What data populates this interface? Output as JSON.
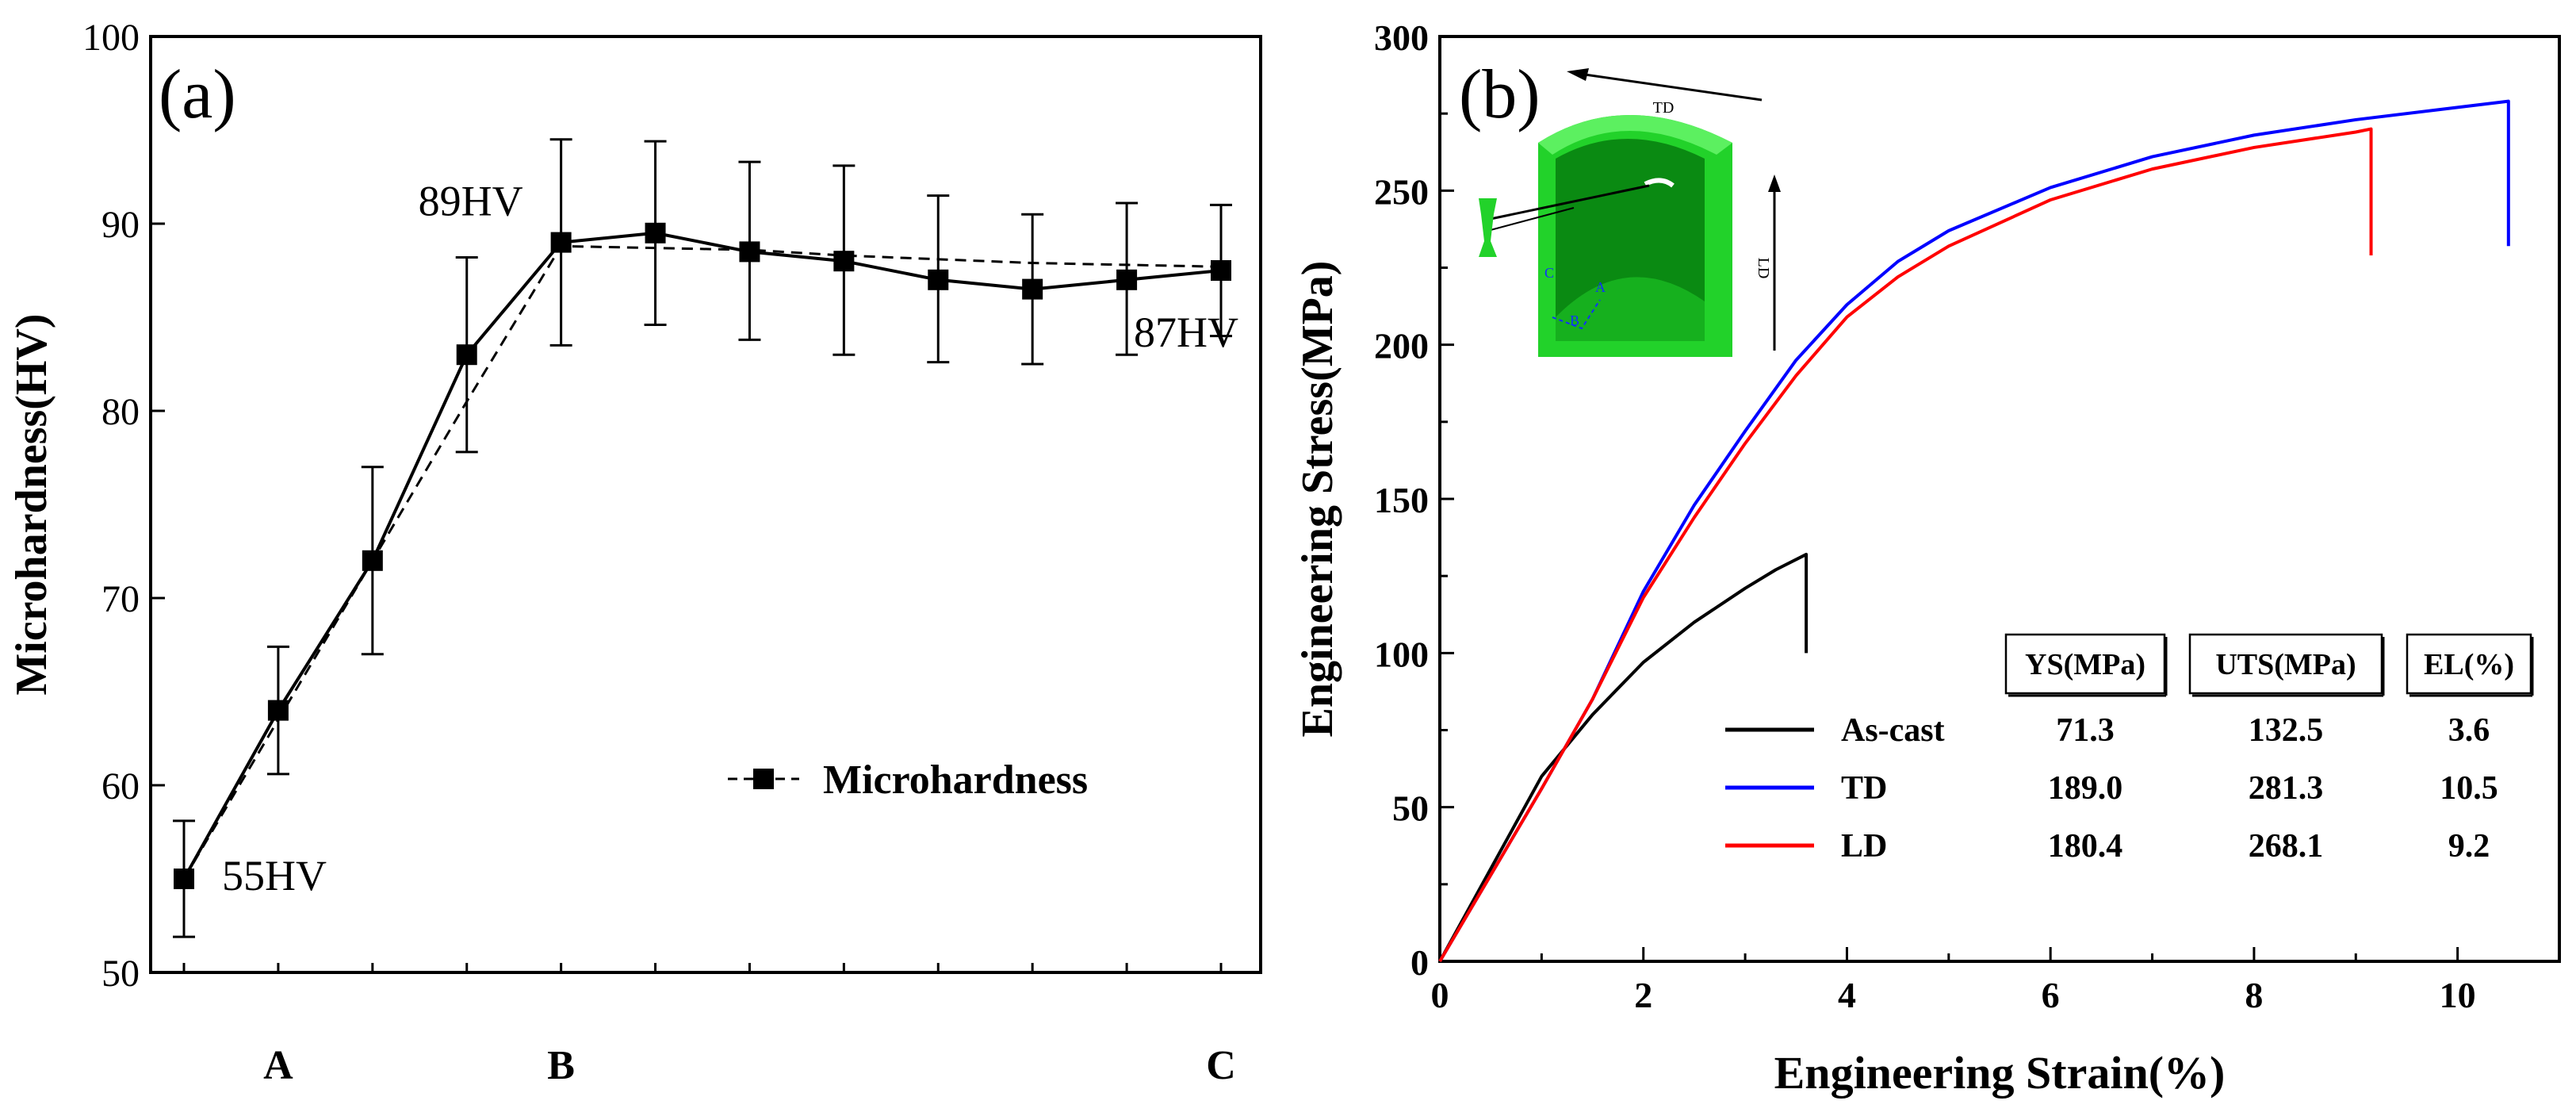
{
  "chart_data": [
    {
      "type": "line",
      "panel_label": "(a)",
      "title": "",
      "xlabel": "",
      "ylabel": "Microhardness(HV)",
      "ylim": [
        50,
        100
      ],
      "y_ticks": [
        50,
        60,
        70,
        80,
        90,
        100
      ],
      "x_index_range": [
        0,
        11
      ],
      "position_labels": [
        {
          "label": "A",
          "index": 1
        },
        {
          "label": "B",
          "index": 4
        },
        {
          "label": "C",
          "index": 11
        }
      ],
      "series": [
        {
          "name": "Microhardness",
          "values": [
            55,
            64,
            72,
            83,
            89,
            89.5,
            88.5,
            88,
            87,
            86.5,
            87,
            87.5
          ],
          "err_low": [
            3.1,
            3.4,
            5,
            5.2,
            5.5,
            4.9,
            4.7,
            5,
            4.4,
            4,
            4,
            3.5
          ],
          "err_high": [
            3.1,
            3.4,
            5,
            5.2,
            5.5,
            4.9,
            4.8,
            5.1,
            4.5,
            4,
            4.1,
            3.5
          ]
        }
      ],
      "fit_line": {
        "x": [
          0,
          1,
          2,
          3,
          4,
          5,
          6,
          7,
          8,
          9,
          10,
          11
        ],
        "y": [
          55,
          63.5,
          72,
          80.5,
          88.8,
          88.7,
          88.6,
          88.3,
          88.1,
          87.9,
          87.8,
          87.7
        ]
      },
      "annotations": [
        {
          "text": "55HV",
          "index": 0,
          "value": 55
        },
        {
          "text": "89HV",
          "index": 4,
          "value": 89
        },
        {
          "text": "87HV",
          "index": 11,
          "value": 87
        }
      ],
      "legend": {
        "label": "Microhardness",
        "placement": "lower-right"
      }
    },
    {
      "type": "line",
      "panel_label": "(b)",
      "title": "",
      "xlabel": "Engineering Strain(%)",
      "ylabel": "Engineering Stress(MPa)",
      "xlim": [
        0,
        11
      ],
      "ylim": [
        0,
        300
      ],
      "x_ticks": [
        0,
        2,
        4,
        6,
        8,
        10
      ],
      "y_ticks": [
        0,
        50,
        100,
        150,
        200,
        250,
        300
      ],
      "series": [
        {
          "name": "As-cast",
          "color": "#000000",
          "x": [
            0,
            0.5,
            1,
            1.5,
            2,
            2.5,
            3,
            3.3,
            3.6,
            3.6
          ],
          "y": [
            0,
            30,
            60,
            80,
            97,
            110,
            121,
            127,
            132,
            100
          ]
        },
        {
          "name": "TD",
          "color": "#0000ff",
          "x": [
            0,
            0.5,
            1,
            1.5,
            2,
            2.5,
            3,
            3.5,
            4,
            4.5,
            5,
            6,
            7,
            8,
            9,
            10,
            10.5,
            10.5
          ],
          "y": [
            0,
            28,
            56,
            85,
            120,
            148,
            172,
            195,
            213,
            227,
            237,
            251,
            261,
            268,
            273,
            277,
            279,
            232
          ]
        },
        {
          "name": "LD",
          "color": "#ff0000",
          "x": [
            0,
            0.5,
            1,
            1.5,
            2,
            2.5,
            3,
            3.5,
            4,
            4.5,
            5,
            6,
            7,
            8,
            9,
            9.15,
            9.15
          ],
          "y": [
            0,
            28,
            56,
            85,
            118,
            144,
            168,
            190,
            209,
            222,
            232,
            247,
            257,
            264,
            269,
            270,
            229
          ]
        }
      ],
      "table": {
        "headers": [
          "YS(MPa)",
          "UTS(MPa)",
          "EL(%)"
        ],
        "rows": [
          {
            "label": "As-cast",
            "color": "#000000",
            "values": [
              "71.3",
              "132.5",
              "3.6"
            ]
          },
          {
            "label": "TD",
            "color": "#0000ff",
            "values": [
              "189.0",
              "281.3",
              "10.5"
            ]
          },
          {
            "label": "LD",
            "color": "#ff0000",
            "values": [
              "180.4",
              "268.1",
              "9.2"
            ]
          }
        ]
      },
      "inset": {
        "td_label": "TD",
        "ld_label": "LD",
        "point_labels": [
          "A",
          "B",
          "C"
        ],
        "colors": {
          "body": "#22d22a",
          "dark": "#0a8a12",
          "mid": "#16b01e",
          "light": "#5cf060"
        }
      }
    }
  ]
}
